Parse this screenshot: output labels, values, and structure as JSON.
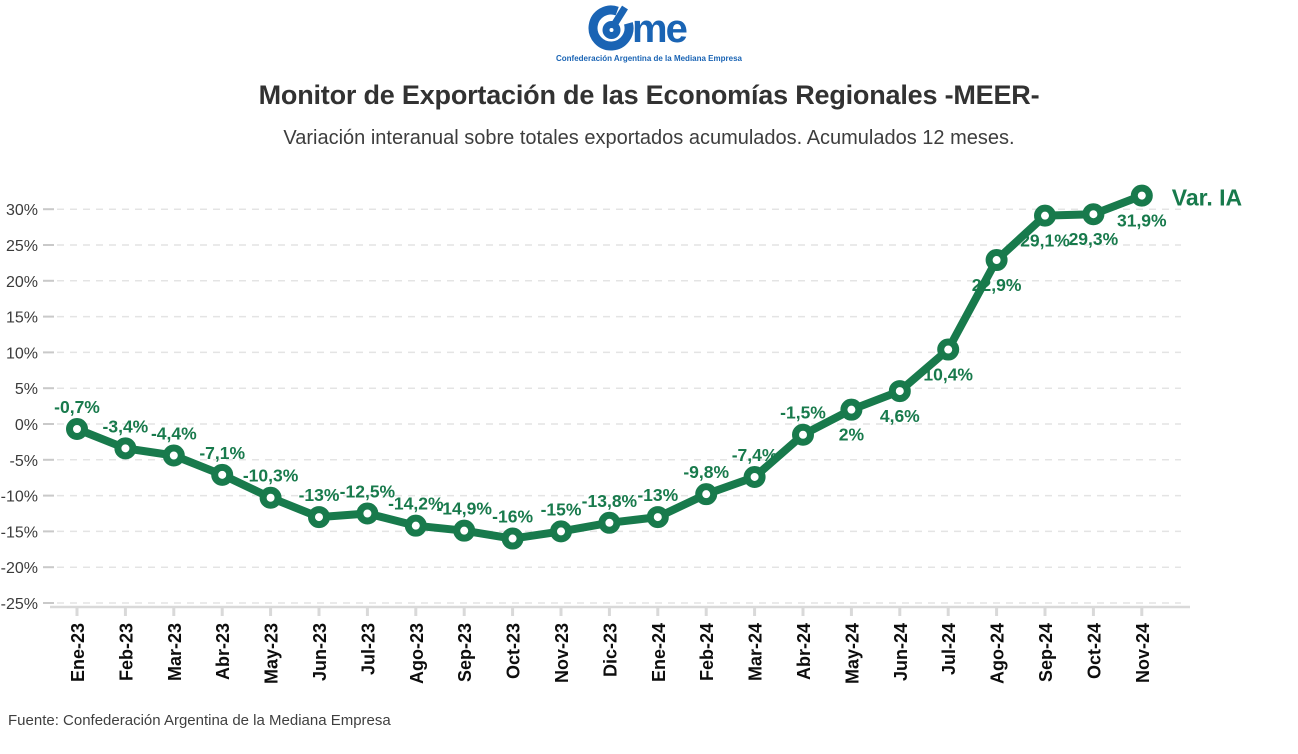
{
  "logo": {
    "brand": "Came",
    "wordmark_tail": "me",
    "tagline": "Confederación Argentina de la Mediana Empresa",
    "color": "#1A64B4"
  },
  "header": {
    "title": "Monitor de Exportación de las Economías Regionales -MEER-",
    "subtitle": "Variación interanual sobre totales exportados acumulados. Acumulados 12 meses."
  },
  "chart_data": {
    "type": "line",
    "title": "Monitor de Exportación de las Economías Regionales -MEER-",
    "subtitle": "Variación interanual sobre totales exportados acumulados. Acumulados 12 meses.",
    "categories": [
      "Ene-23",
      "Feb-23",
      "Mar-23",
      "Abr-23",
      "May-23",
      "Jun-23",
      "Jul-23",
      "Ago-23",
      "Sep-23",
      "Oct-23",
      "Nov-23",
      "Dic-23",
      "Ene-24",
      "Feb-24",
      "Mar-24",
      "Abr-24",
      "May-24",
      "Jun-24",
      "Jul-24",
      "Ago-24",
      "Sep-24",
      "Oct-24",
      "Nov-24"
    ],
    "series": [
      {
        "name": "Var. IA",
        "values": [
          -0.7,
          -3.4,
          -4.4,
          -7.1,
          -10.3,
          -13,
          -12.5,
          -14.2,
          -14.9,
          -16,
          -15,
          -13.8,
          -13,
          -9.8,
          -7.4,
          -1.5,
          2,
          4.6,
          10.4,
          22.9,
          29.1,
          29.3,
          31.9
        ],
        "point_labels": [
          "-0,7%",
          "-3,4%",
          "-4,4%",
          "-7,1%",
          "-10,3%",
          "-13%",
          "-12,5%",
          "-14,2%",
          "-14,9%",
          "-16%",
          "-15%",
          "-13,8%",
          "-13%",
          "-9,8%",
          "-7,4%",
          "-1,5%",
          "2%",
          "4,6%",
          "10,4%",
          "22,9%",
          "29,1%",
          "29,3%",
          "31,9%"
        ]
      }
    ],
    "ylim": [
      -25,
      30
    ],
    "ytick_values": [
      30,
      25,
      20,
      15,
      10,
      5,
      0,
      -5,
      -10,
      -15,
      -20,
      -25
    ],
    "ytick_suffix": "%",
    "xlabel": "",
    "ylabel": "",
    "grid": "horizontal-dashed",
    "legend_position": "line-end",
    "line_color": "#187A4C",
    "marker_fill": "#FFFFFF",
    "label_color": "#187A4C",
    "axis_color": "#d9d9d9",
    "grid_color": "#e4e4e4",
    "tick_label_color": "#3b3b3b",
    "xtick_label_color": "#0d0d0d",
    "label_below_from_index": 16
  },
  "footer": {
    "source": "Fuente: Confederación Argentina de la Mediana Empresa"
  }
}
